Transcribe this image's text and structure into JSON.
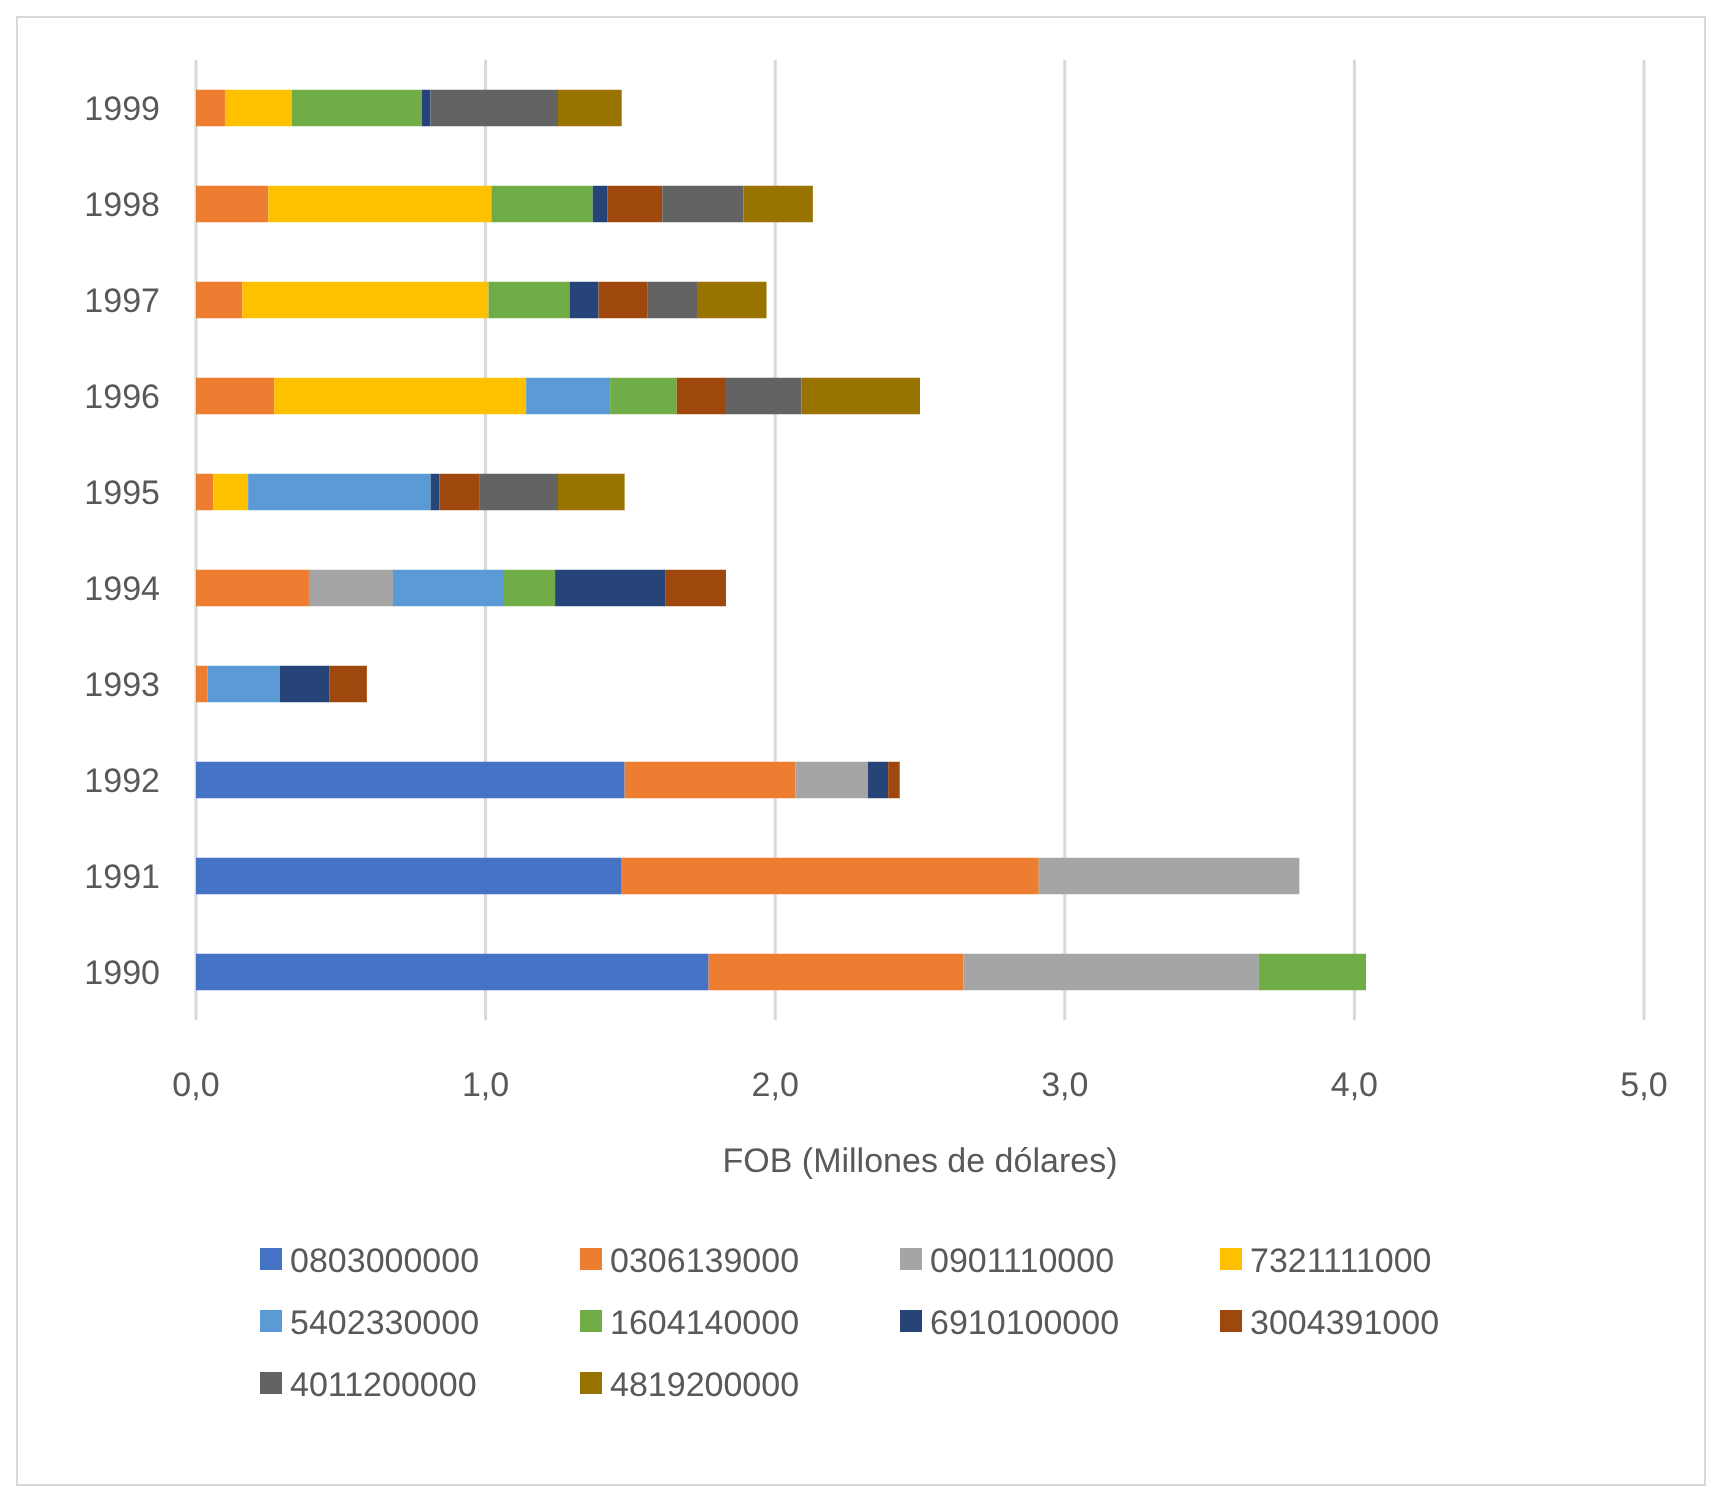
{
  "chart_data": {
    "type": "bar",
    "orientation": "horizontal",
    "stacked": true,
    "xlabel": "FOB (Millones de dólares)",
    "categories": [
      "1999",
      "1998",
      "1997",
      "1996",
      "1995",
      "1994",
      "1993",
      "1992",
      "1991",
      "1990"
    ],
    "xlim": [
      0,
      5
    ],
    "xticks": [
      {
        "value": 0,
        "label": "0,0"
      },
      {
        "value": 1,
        "label": "1,0"
      },
      {
        "value": 2,
        "label": "2,0"
      },
      {
        "value": 3,
        "label": "3,0"
      },
      {
        "value": 4,
        "label": "4,0"
      },
      {
        "value": 5,
        "label": "5,0"
      }
    ],
    "grid": "x",
    "legend": "bottom",
    "series": [
      {
        "name": "0803000000",
        "color": "#4472c4",
        "values": [
          null,
          null,
          null,
          null,
          null,
          null,
          null,
          1.48,
          1.47,
          1.77
        ]
      },
      {
        "name": "0306139000",
        "color": "#ed7d31",
        "values": [
          0.1,
          0.25,
          0.16,
          0.27,
          0.06,
          0.39,
          0.04,
          0.59,
          1.44,
          0.88
        ]
      },
      {
        "name": "0901110000",
        "color": "#a5a5a5",
        "values": [
          null,
          null,
          null,
          null,
          null,
          0.29,
          null,
          0.25,
          0.9,
          1.02
        ]
      },
      {
        "name": "7321111000",
        "color": "#ffc000",
        "values": [
          0.23,
          0.77,
          0.85,
          0.87,
          0.12,
          null,
          null,
          null,
          null,
          null
        ]
      },
      {
        "name": "5402330000",
        "color": "#5b9bd5",
        "values": [
          null,
          null,
          null,
          0.29,
          0.63,
          0.38,
          0.25,
          null,
          null,
          null
        ]
      },
      {
        "name": "1604140000",
        "color": "#70ad47",
        "values": [
          0.45,
          0.35,
          0.28,
          0.23,
          null,
          0.18,
          null,
          null,
          null,
          0.37
        ]
      },
      {
        "name": "6910100000",
        "color": "#264478",
        "values": [
          0.03,
          0.05,
          0.1,
          null,
          0.03,
          0.38,
          0.17,
          0.07,
          null,
          null
        ]
      },
      {
        "name": "3004391000",
        "color": "#9e480e",
        "values": [
          null,
          0.19,
          0.17,
          0.17,
          0.14,
          0.21,
          0.13,
          0.04,
          null,
          null
        ]
      },
      {
        "name": "4011200000",
        "color": "#636363",
        "values": [
          0.44,
          0.28,
          0.17,
          0.26,
          0.27,
          null,
          null,
          null,
          null,
          null
        ]
      },
      {
        "name": "4819200000",
        "color": "#997300",
        "values": [
          0.22,
          0.24,
          0.24,
          0.41,
          0.23,
          null,
          null,
          null,
          null,
          null
        ]
      }
    ]
  }
}
